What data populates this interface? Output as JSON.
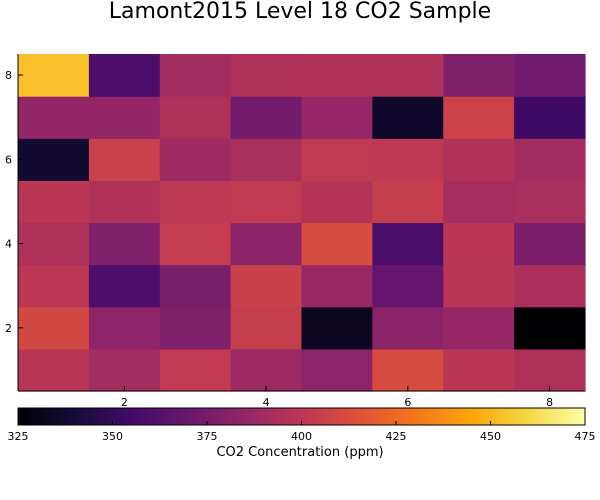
{
  "chart_data": {
    "type": "heatmap",
    "title": "Lamont2015 Level 18 CO2 Sample",
    "colorscale": "inferno",
    "x": [
      1,
      2,
      3,
      4,
      5,
      6,
      7,
      8
    ],
    "y": [
      1,
      2,
      3,
      4,
      5,
      6,
      7,
      8
    ],
    "xlim": [
      0.5,
      8.5
    ],
    "ylim": [
      0.5,
      8.5
    ],
    "xticks": [
      2,
      4,
      6,
      8
    ],
    "yticks": [
      2,
      4,
      6,
      8
    ],
    "zlim": [
      325,
      475
    ],
    "colorbar": {
      "label": "CO2 Concentration (ppm)",
      "ticks": [
        325,
        350,
        375,
        400,
        425,
        450,
        475
      ]
    },
    "z": [
      [
        398,
        391,
        402,
        388,
        383,
        412,
        399,
        395
      ],
      [
        410,
        383,
        378,
        404,
        333,
        382,
        386,
        325
      ],
      [
        400,
        359,
        376,
        405,
        387,
        368,
        398,
        394
      ],
      [
        395,
        378,
        403,
        382,
        412,
        358,
        399,
        377
      ],
      [
        399,
        396,
        401,
        402,
        397,
        404,
        392,
        393
      ],
      [
        338,
        406,
        389,
        393,
        402,
        401,
        396,
        391
      ],
      [
        385,
        385,
        395,
        374,
        386,
        336,
        407,
        354
      ],
      [
        453,
        359,
        391,
        395,
        396,
        396,
        378,
        373
      ]
    ]
  }
}
